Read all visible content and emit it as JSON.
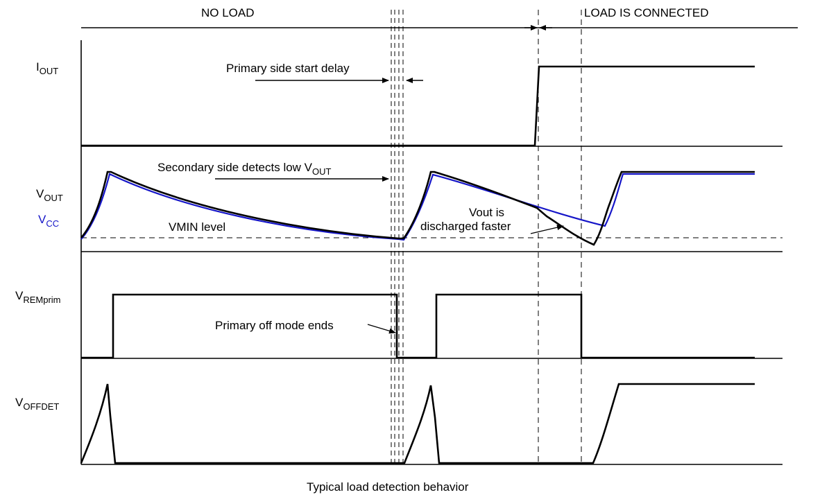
{
  "phases": {
    "no_load": "NO LOAD",
    "load_connected": "LOAD IS CONNECTED"
  },
  "signals": {
    "iout": {
      "main": "I",
      "sub": "OUT"
    },
    "vout": {
      "main": "V",
      "sub": "OUT"
    },
    "vcc": {
      "main": "V",
      "sub": "CC"
    },
    "vremprim": {
      "main": "V",
      "sub": "REMprim"
    },
    "voffdet": {
      "main": "V",
      "sub": "OFFDET"
    }
  },
  "annotations": {
    "primary_start_delay": "Primary side start delay",
    "secondary_detects": "Secondary side detects low V",
    "secondary_detects_sub": "OUT",
    "vmin_level": "VMIN level",
    "vout_is": "Vout is",
    "discharged_faster": "discharged faster",
    "primary_off_ends": "Primary off mode ends"
  },
  "caption": "Typical load detection behavior",
  "colors": {
    "trace": "#000000",
    "vcc": "#1515c8"
  }
}
